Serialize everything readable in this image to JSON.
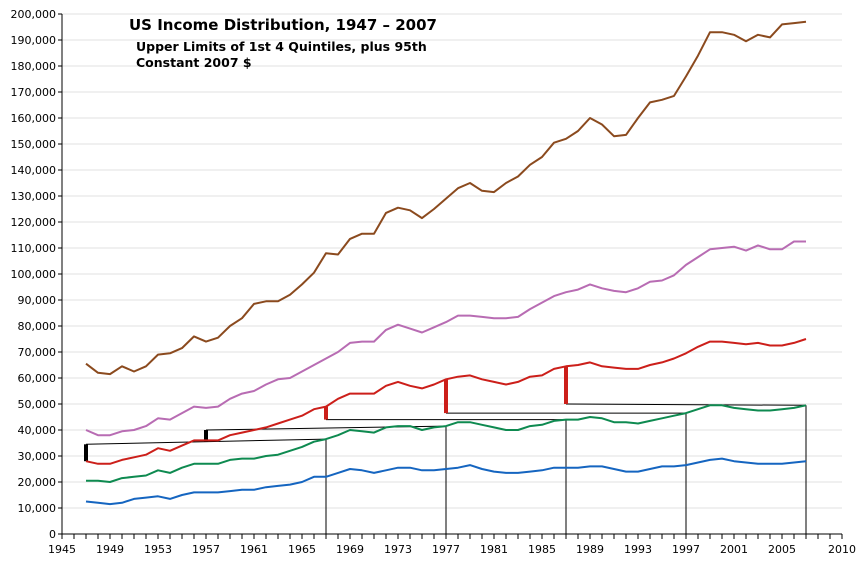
{
  "chart_data": {
    "type": "line",
    "title": "US Income Distribution, 1947 – 2007",
    "subtitle_lines": [
      "Upper Limits of 1st 4 Quintiles, plus 95th",
      "Constant 2007 $"
    ],
    "xlabel": "",
    "ylabel": "",
    "xlim": [
      1945,
      2010
    ],
    "ylim": [
      0,
      200000
    ],
    "grid": true,
    "legend": "none",
    "x_tick_labels": [
      "1945",
      "1949",
      "1953",
      "1957",
      "1961",
      "1965",
      "1969",
      "1973",
      "1977",
      "1981",
      "1985",
      "1989",
      "1993",
      "1997",
      "2001",
      "2005",
      "2010"
    ],
    "y_tick_labels": [
      "0",
      "10,000",
      "20,000",
      "30,000",
      "40,000",
      "50,000",
      "60,000",
      "70,000",
      "80,000",
      "90,000",
      "100,000",
      "110,000",
      "120,000",
      "130,000",
      "140,000",
      "150,000",
      "160,000",
      "170,000",
      "180,000",
      "190,000",
      "200,000"
    ],
    "x": [
      1947,
      1948,
      1949,
      1950,
      1951,
      1952,
      1953,
      1954,
      1955,
      1956,
      1957,
      1958,
      1959,
      1960,
      1961,
      1962,
      1963,
      1964,
      1965,
      1966,
      1967,
      1968,
      1969,
      1970,
      1971,
      1972,
      1973,
      1974,
      1975,
      1976,
      1977,
      1978,
      1979,
      1980,
      1981,
      1982,
      1983,
      1984,
      1985,
      1986,
      1987,
      1988,
      1989,
      1990,
      1991,
      1992,
      1993,
      1994,
      1995,
      1996,
      1997,
      1998,
      1999,
      2000,
      2001,
      2002,
      2003,
      2004,
      2005,
      2006,
      2007
    ],
    "series": [
      {
        "color": "#8B4A1E",
        "values": [
          65500,
          62000,
          61500,
          64500,
          62500,
          64500,
          69000,
          69500,
          71500,
          76000,
          74000,
          75500,
          80000,
          83000,
          88500,
          89500,
          89500,
          92000,
          96000,
          100500,
          108000,
          107500,
          113500,
          115500,
          115500,
          123500,
          125500,
          124500,
          121500,
          125000,
          129000,
          133000,
          135000,
          132000,
          131500,
          135000,
          137500,
          142000,
          145000,
          150500,
          152000,
          155000,
          160000,
          157500,
          153000,
          153500,
          160000,
          166000,
          167000,
          168500,
          176000,
          184000,
          193000,
          193000,
          192000,
          189500,
          192000,
          191000,
          196000,
          196500,
          197000
        ]
      },
      {
        "color": "#B86CB3",
        "values": [
          40000,
          38000,
          38000,
          39500,
          40000,
          41500,
          44500,
          44000,
          46500,
          49000,
          48500,
          49000,
          52000,
          54000,
          55000,
          57500,
          59500,
          60000,
          62500,
          65000,
          67500,
          70000,
          73500,
          74000,
          74000,
          78500,
          80500,
          79000,
          77500,
          79500,
          81500,
          84000,
          84000,
          83500,
          83000,
          83000,
          83500,
          86500,
          89000,
          91500,
          93000,
          94000,
          96000,
          94500,
          93500,
          93000,
          94500,
          97000,
          97500,
          99500,
          103500,
          106500,
          109500,
          110000,
          110500,
          109000,
          111000,
          109500,
          109500,
          112500,
          112500
        ]
      },
      {
        "color": "#CC1F1A",
        "values": [
          28000,
          27000,
          27000,
          28500,
          29500,
          30500,
          33000,
          32000,
          34000,
          36000,
          36000,
          36000,
          38000,
          39000,
          40000,
          41000,
          42500,
          44000,
          45500,
          48000,
          49000,
          52000,
          54000,
          54000,
          54000,
          57000,
          58500,
          57000,
          56000,
          57500,
          59500,
          60500,
          61000,
          59500,
          58500,
          57500,
          58500,
          60500,
          61000,
          63500,
          64500,
          65000,
          66000,
          64500,
          64000,
          63500,
          63500,
          65000,
          66000,
          67500,
          69500,
          72000,
          74000,
          74000,
          73500,
          73000,
          73500,
          72500,
          72500,
          73500,
          75000
        ]
      },
      {
        "color": "#0E8A50",
        "values": [
          20500,
          20500,
          20000,
          21500,
          22000,
          22500,
          24500,
          23500,
          25500,
          27000,
          27000,
          27000,
          28500,
          29000,
          29000,
          30000,
          30500,
          32000,
          33500,
          35500,
          36500,
          38000,
          40000,
          39500,
          39000,
          41000,
          41500,
          41500,
          40000,
          41000,
          41500,
          43000,
          43000,
          42000,
          41000,
          40000,
          40000,
          41500,
          42000,
          43500,
          44000,
          44000,
          45000,
          44500,
          43000,
          43000,
          42500,
          43500,
          44500,
          45500,
          46500,
          48000,
          49500,
          49500,
          48500,
          48000,
          47500,
          47500,
          48000,
          48500,
          49500
        ]
      },
      {
        "color": "#1565C0",
        "values": [
          12500,
          12000,
          11500,
          12000,
          13500,
          14000,
          14500,
          13500,
          15000,
          16000,
          16000,
          16000,
          16500,
          17000,
          17000,
          18000,
          18500,
          19000,
          20000,
          22000,
          22000,
          23500,
          25000,
          24500,
          23500,
          24500,
          25500,
          25500,
          24500,
          24500,
          25000,
          25500,
          26500,
          25000,
          24000,
          23500,
          23500,
          24000,
          24500,
          25500,
          25500,
          25500,
          26000,
          26000,
          25000,
          24000,
          24000,
          25000,
          26000,
          26000,
          26500,
          27500,
          28500,
          29000,
          28000,
          27500,
          27000,
          27000,
          27000,
          27500,
          28000
        ]
      }
    ],
    "annotations": [
      {
        "bar_year": 1947,
        "bar_from": 28000,
        "bar_to": 34500,
        "bar_color": "#000000",
        "line_to_year": 1967,
        "line_to_value": 36500
      },
      {
        "bar_year": 1957,
        "bar_from": 35500,
        "bar_to": 40000,
        "bar_color": "#000000",
        "line_to_year": 1977,
        "line_to_value": 41500
      },
      {
        "bar_year": 1967,
        "bar_from": 44000,
        "bar_to": 49000,
        "bar_color": "#CC1F1A",
        "line_to_year": 1987,
        "line_to_value": 44000
      },
      {
        "bar_year": 1977,
        "bar_from": 46500,
        "bar_to": 59500,
        "bar_color": "#CC1F1A",
        "line_to_year": 1997,
        "line_to_value": 46500
      },
      {
        "bar_year": 1987,
        "bar_from": 50000,
        "bar_to": 64500,
        "bar_color": "#CC1F1A",
        "line_to_year": 2007,
        "line_to_value": 49500
      }
    ]
  }
}
